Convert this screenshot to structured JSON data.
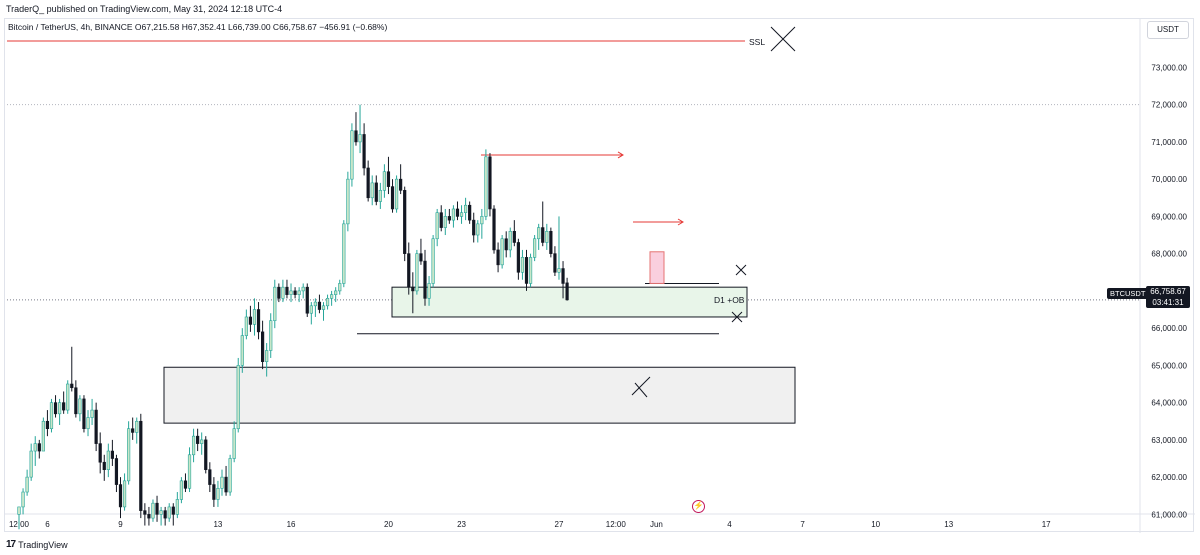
{
  "header": {
    "published_text": "TraderQ_ published on TradingView.com, May 31, 2024 12:18 UTC-4"
  },
  "symbol_info": {
    "text": "Bitcoin / TetherUS, 4h, BINANCE  O67,215.58  H67,352.41  L66,739.00  C66,758.67  −456.91 (−0.68%)"
  },
  "currency_button": {
    "label": "USDT"
  },
  "price_tag": {
    "symbol": "BTCUSDT",
    "price": "66,758.67",
    "countdown": "03:41:31"
  },
  "footer": {
    "brand": "TradingView",
    "logo": "17"
  },
  "annotations": {
    "ssl": "SSL",
    "ob": "D1 +OB"
  },
  "colors": {
    "up": "#26a69a",
    "up_fill": "#c8e6c9",
    "down": "#131722",
    "ssl_line": "#e53935",
    "arrow": "#e53935",
    "ob_zone": "#e8f5e9",
    "box": "#f0f0f0"
  },
  "chart_data": {
    "type": "candlestick",
    "symbol": "BTCUSDT",
    "timeframe": "4h",
    "ylim": [
      60500,
      74300
    ],
    "y_ticks": [
      "73,000.00",
      "72,000.00",
      "71,000.00",
      "70,000.00",
      "69,000.00",
      "68,000.00",
      "67,000.00",
      "66,000.00",
      "65,000.00",
      "64,000.00",
      "63,000.00",
      "62,000.00",
      "61,000.00"
    ],
    "y_tick_values": [
      73000,
      72000,
      71000,
      70000,
      69000,
      68000,
      67000,
      66000,
      65000,
      64000,
      63000,
      62000,
      61000
    ],
    "x_ticks": [
      {
        "label": "12:00",
        "t": 0
      },
      {
        "label": "6",
        "t": 7
      },
      {
        "label": "9",
        "t": 25
      },
      {
        "label": "13",
        "t": 49
      },
      {
        "label": "16",
        "t": 67
      },
      {
        "label": "20",
        "t": 91
      },
      {
        "label": "23",
        "t": 109
      },
      {
        "label": "27",
        "t": 133
      },
      {
        "label": "12:00",
        "t": 147
      },
      {
        "label": "Jun",
        "t": 157
      },
      {
        "label": "4",
        "t": 175
      },
      {
        "label": "7",
        "t": 193
      },
      {
        "label": "10",
        "t": 211
      },
      {
        "label": "13",
        "t": 229
      },
      {
        "label": "17",
        "t": 253
      }
    ],
    "candles": [
      [
        61000,
        61200,
        60600,
        61200
      ],
      [
        61200,
        61700,
        61000,
        61600
      ],
      [
        61600,
        62200,
        61500,
        62000
      ],
      [
        62000,
        62900,
        61900,
        62700
      ],
      [
        62700,
        63100,
        62300,
        62900
      ],
      [
        62900,
        63000,
        62500,
        62700
      ],
      [
        62700,
        63600,
        62700,
        63500
      ],
      [
        63500,
        63800,
        63100,
        63300
      ],
      [
        63300,
        64100,
        63200,
        64000
      ],
      [
        64000,
        64200,
        63600,
        63700
      ],
      [
        63700,
        64100,
        63400,
        64000
      ],
      [
        64000,
        64300,
        63700,
        63800
      ],
      [
        63800,
        64600,
        63700,
        64500
      ],
      [
        64500,
        65500,
        64300,
        64400
      ],
      [
        64400,
        64600,
        63600,
        63700
      ],
      [
        63700,
        64200,
        63500,
        64100
      ],
      [
        64100,
        64200,
        63200,
        63300
      ],
      [
        63300,
        63800,
        63100,
        63600
      ],
      [
        63600,
        64100,
        63400,
        63800
      ],
      [
        63800,
        64000,
        62700,
        62900
      ],
      [
        62900,
        63200,
        62100,
        62400
      ],
      [
        62400,
        62600,
        61900,
        62200
      ],
      [
        62200,
        62900,
        62000,
        62700
      ],
      [
        62700,
        63000,
        62300,
        62500
      ],
      [
        62500,
        62600,
        61600,
        61800
      ],
      [
        61800,
        62000,
        60900,
        61200
      ],
      [
        61200,
        62100,
        61100,
        61900
      ],
      [
        61900,
        63500,
        61800,
        63300
      ],
      [
        63300,
        63600,
        63000,
        63200
      ],
      [
        63200,
        63600,
        62900,
        63500
      ],
      [
        63500,
        63700,
        60900,
        61100
      ],
      [
        61100,
        61300,
        60700,
        61000
      ],
      [
        61000,
        61200,
        60700,
        60900
      ],
      [
        60900,
        61400,
        60800,
        61300
      ],
      [
        61300,
        61500,
        60800,
        61000
      ],
      [
        61000,
        61200,
        60700,
        61100
      ],
      [
        61100,
        61200,
        60700,
        60900
      ],
      [
        60900,
        61300,
        60800,
        61200
      ],
      [
        61200,
        61300,
        60700,
        61000
      ],
      [
        61000,
        61600,
        60900,
        61400
      ],
      [
        61400,
        62000,
        61300,
        61900
      ],
      [
        61900,
        62100,
        61600,
        61700
      ],
      [
        61700,
        62800,
        61600,
        62600
      ],
      [
        62600,
        63300,
        62400,
        63100
      ],
      [
        63100,
        63300,
        62700,
        62900
      ],
      [
        62900,
        63200,
        62600,
        63000
      ],
      [
        63000,
        63100,
        62100,
        62200
      ],
      [
        62200,
        62400,
        61600,
        61800
      ],
      [
        61800,
        62000,
        61200,
        61400
      ],
      [
        61400,
        61900,
        61200,
        61700
      ],
      [
        61700,
        62200,
        61500,
        62000
      ],
      [
        62000,
        62300,
        61500,
        61600
      ],
      [
        61600,
        62600,
        61500,
        62500
      ],
      [
        62500,
        63500,
        62400,
        63300
      ],
      [
        63300,
        65200,
        63200,
        65000
      ],
      [
        65000,
        66000,
        64800,
        65800
      ],
      [
        65800,
        66500,
        65700,
        66300
      ],
      [
        66300,
        66600,
        65900,
        66100
      ],
      [
        66100,
        66800,
        65800,
        66500
      ],
      [
        66500,
        66700,
        65700,
        65900
      ],
      [
        65900,
        66200,
        64900,
        65100
      ],
      [
        65100,
        65600,
        64700,
        65400
      ],
      [
        65400,
        66400,
        65200,
        66200
      ],
      [
        66200,
        67300,
        66000,
        67100
      ],
      [
        67100,
        67200,
        66700,
        66800
      ],
      [
        66800,
        67300,
        66700,
        67100
      ],
      [
        67100,
        67300,
        66800,
        66900
      ],
      [
        66900,
        67200,
        66700,
        67000
      ],
      [
        67000,
        67100,
        66800,
        66900
      ],
      [
        66900,
        67100,
        66700,
        67000
      ],
      [
        67000,
        67200,
        66800,
        67100
      ],
      [
        67100,
        67200,
        66300,
        66400
      ],
      [
        66400,
        66700,
        66100,
        66600
      ],
      [
        66600,
        66800,
        66300,
        66700
      ],
      [
        66700,
        66900,
        66400,
        66500
      ],
      [
        66500,
        66700,
        66200,
        66600
      ],
      [
        66600,
        66900,
        66500,
        66800
      ],
      [
        66800,
        67000,
        66600,
        66900
      ],
      [
        66900,
        67100,
        66700,
        67000
      ],
      [
        67000,
        67300,
        66900,
        67200
      ],
      [
        67200,
        68900,
        67100,
        68800
      ],
      [
        68800,
        70200,
        68600,
        70000
      ],
      [
        70000,
        71500,
        69800,
        71300
      ],
      [
        71300,
        71800,
        70900,
        71000
      ],
      [
        71000,
        72000,
        70700,
        71200
      ],
      [
        71200,
        71500,
        70100,
        70300
      ],
      [
        70300,
        70500,
        69400,
        69500
      ],
      [
        69500,
        70100,
        69300,
        69900
      ],
      [
        69900,
        70100,
        69300,
        69400
      ],
      [
        69400,
        69900,
        69200,
        69700
      ],
      [
        69700,
        70400,
        69500,
        70200
      ],
      [
        70200,
        70600,
        69600,
        69800
      ],
      [
        69800,
        70000,
        69100,
        69200
      ],
      [
        69200,
        70100,
        69100,
        70000
      ],
      [
        70000,
        70400,
        69600,
        69700
      ],
      [
        69700,
        69800,
        67800,
        68000
      ],
      [
        68000,
        68300,
        66900,
        67100
      ],
      [
        67100,
        67500,
        66400,
        67000
      ],
      [
        67000,
        68100,
        66900,
        68000
      ],
      [
        68000,
        68400,
        67700,
        67800
      ],
      [
        67800,
        68100,
        66600,
        66800
      ],
      [
        66800,
        67400,
        66600,
        67200
      ],
      [
        67200,
        68500,
        67100,
        68400
      ],
      [
        68400,
        69200,
        68200,
        69100
      ],
      [
        69100,
        69300,
        68600,
        68700
      ],
      [
        68700,
        69200,
        68500,
        69000
      ],
      [
        69000,
        69200,
        68800,
        68900
      ],
      [
        68900,
        69300,
        68700,
        69200
      ],
      [
        69200,
        69400,
        68900,
        69000
      ],
      [
        69000,
        69300,
        68800,
        69100
      ],
      [
        69100,
        69500,
        68900,
        69300
      ],
      [
        69300,
        69400,
        68800,
        68900
      ],
      [
        68900,
        69100,
        68300,
        68500
      ],
      [
        68500,
        68900,
        68300,
        68800
      ],
      [
        68800,
        69200,
        68400,
        69000
      ],
      [
        69000,
        70800,
        68900,
        70600
      ],
      [
        70600,
        70700,
        69000,
        69200
      ],
      [
        69200,
        69300,
        68000,
        68100
      ],
      [
        68100,
        68300,
        67500,
        67700
      ],
      [
        67700,
        68500,
        67600,
        68400
      ],
      [
        68400,
        68600,
        67900,
        68100
      ],
      [
        68100,
        68700,
        67900,
        68600
      ],
      [
        68600,
        68900,
        68200,
        68300
      ],
      [
        68300,
        68400,
        67300,
        67500
      ],
      [
        67500,
        68100,
        67300,
        67900
      ],
      [
        67900,
        68100,
        67000,
        67200
      ],
      [
        67200,
        68000,
        67100,
        67900
      ],
      [
        67900,
        68500,
        67800,
        68400
      ],
      [
        68400,
        68800,
        68100,
        68700
      ],
      [
        68700,
        69400,
        68200,
        68300
      ],
      [
        68300,
        68800,
        68100,
        68600
      ],
      [
        68600,
        68700,
        67900,
        68000
      ],
      [
        68000,
        68200,
        67400,
        67500
      ],
      [
        67500,
        69000,
        67300,
        67600
      ],
      [
        67600,
        67800,
        66800,
        67200
      ],
      [
        67215.58,
        67352.41,
        66739.0,
        66758.67
      ]
    ]
  }
}
